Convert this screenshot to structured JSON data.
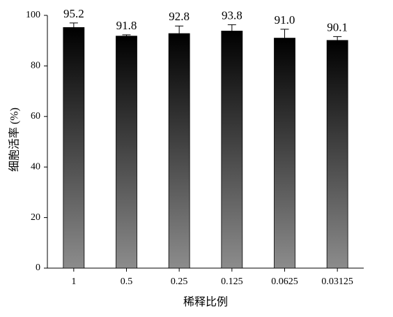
{
  "chart_data": {
    "type": "bar",
    "x_label": "稀释比例",
    "y_label": "细胞活率 (%)",
    "categories": [
      "1",
      "0.5",
      "0.25",
      "0.125",
      "0.0625",
      "0.03125"
    ],
    "values": [
      95.2,
      91.8,
      92.8,
      93.8,
      91.0,
      90.1
    ],
    "value_labels": [
      "95.2",
      "91.8",
      "92.8",
      "93.8",
      "91.0",
      "90.1"
    ],
    "errors": [
      1.8,
      0.5,
      3.0,
      2.5,
      3.5,
      1.5
    ],
    "gradient": [
      "#000000",
      "#8c8c8c"
    ],
    "ylim": [
      0,
      100
    ],
    "yticks": [
      0,
      20,
      40,
      60,
      80,
      100
    ]
  }
}
